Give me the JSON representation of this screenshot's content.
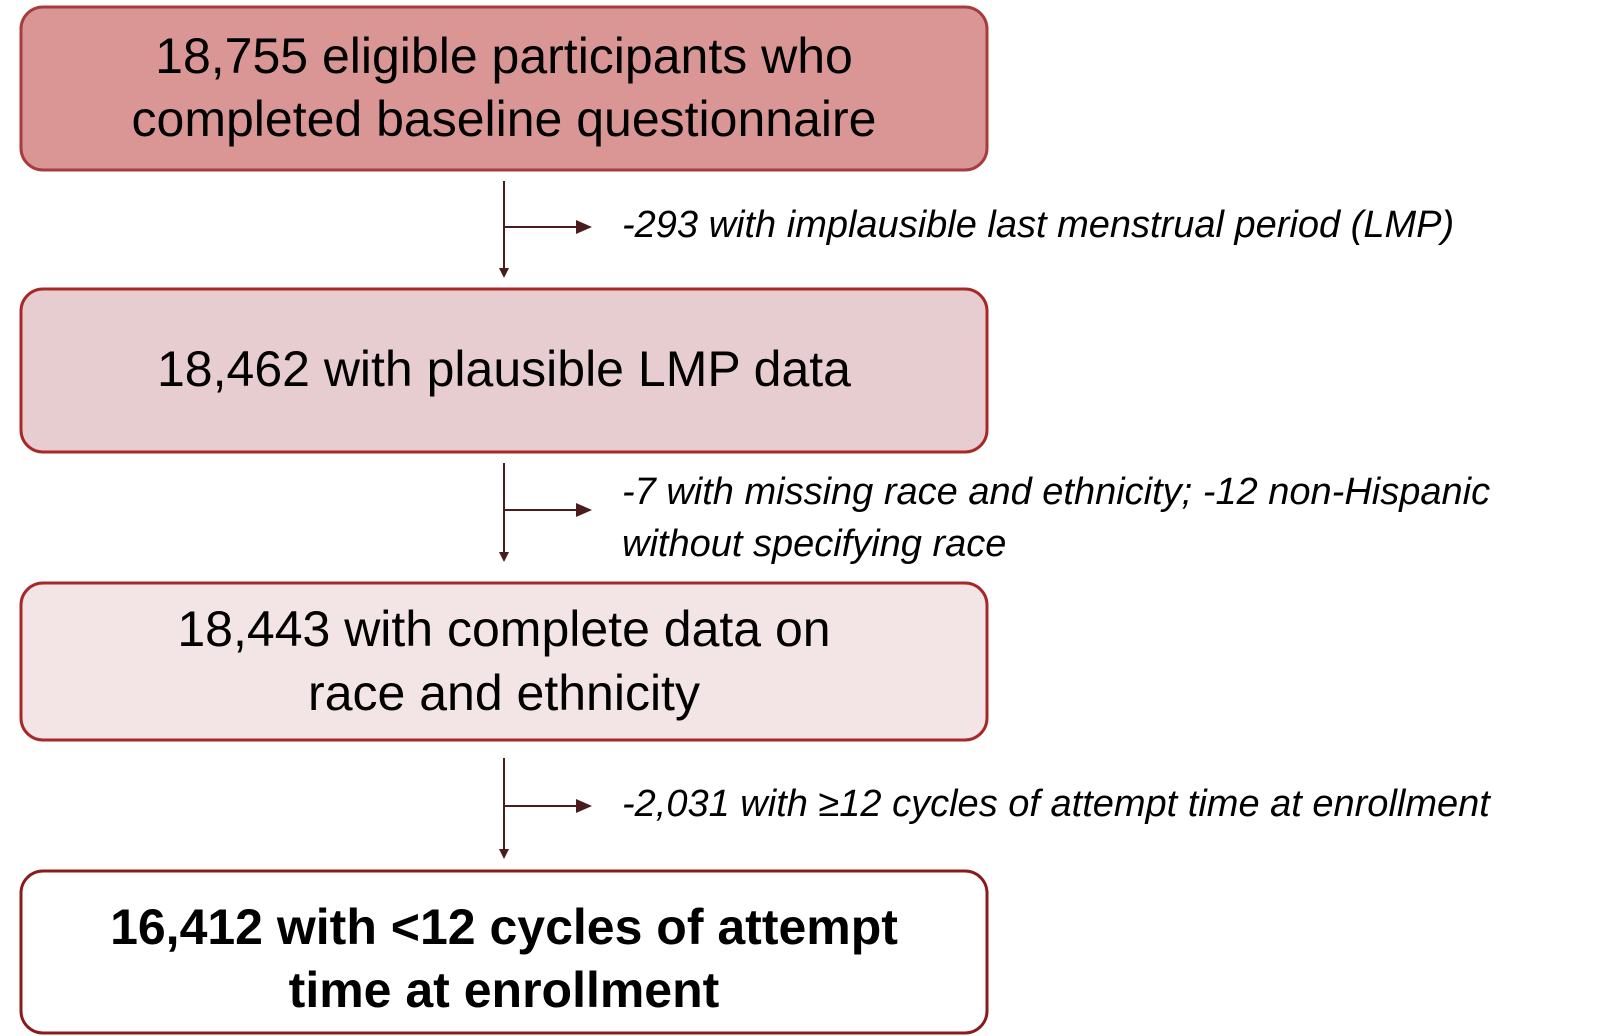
{
  "nodes": [
    {
      "lines": [
        "18,755 eligible participants who",
        "completed baseline questionnaire"
      ]
    },
    {
      "lines": [
        "18,462 with plausible LMP data"
      ]
    },
    {
      "lines": [
        "18,443 with complete data on",
        "race and ethnicity"
      ]
    },
    {
      "lines": [
        "16,412 with <12 cycles of attempt",
        "time at enrollment"
      ]
    }
  ],
  "exclusions": [
    {
      "lines": [
        "-293 with implausible last menstrual period (LMP)"
      ]
    },
    {
      "lines": [
        "-7 with missing race and ethnicity; -12 non-Hispanic",
        "without specifying race"
      ]
    },
    {
      "lines": [
        "-2,031 with ≥12 cycles of attempt time at enrollment"
      ]
    }
  ]
}
